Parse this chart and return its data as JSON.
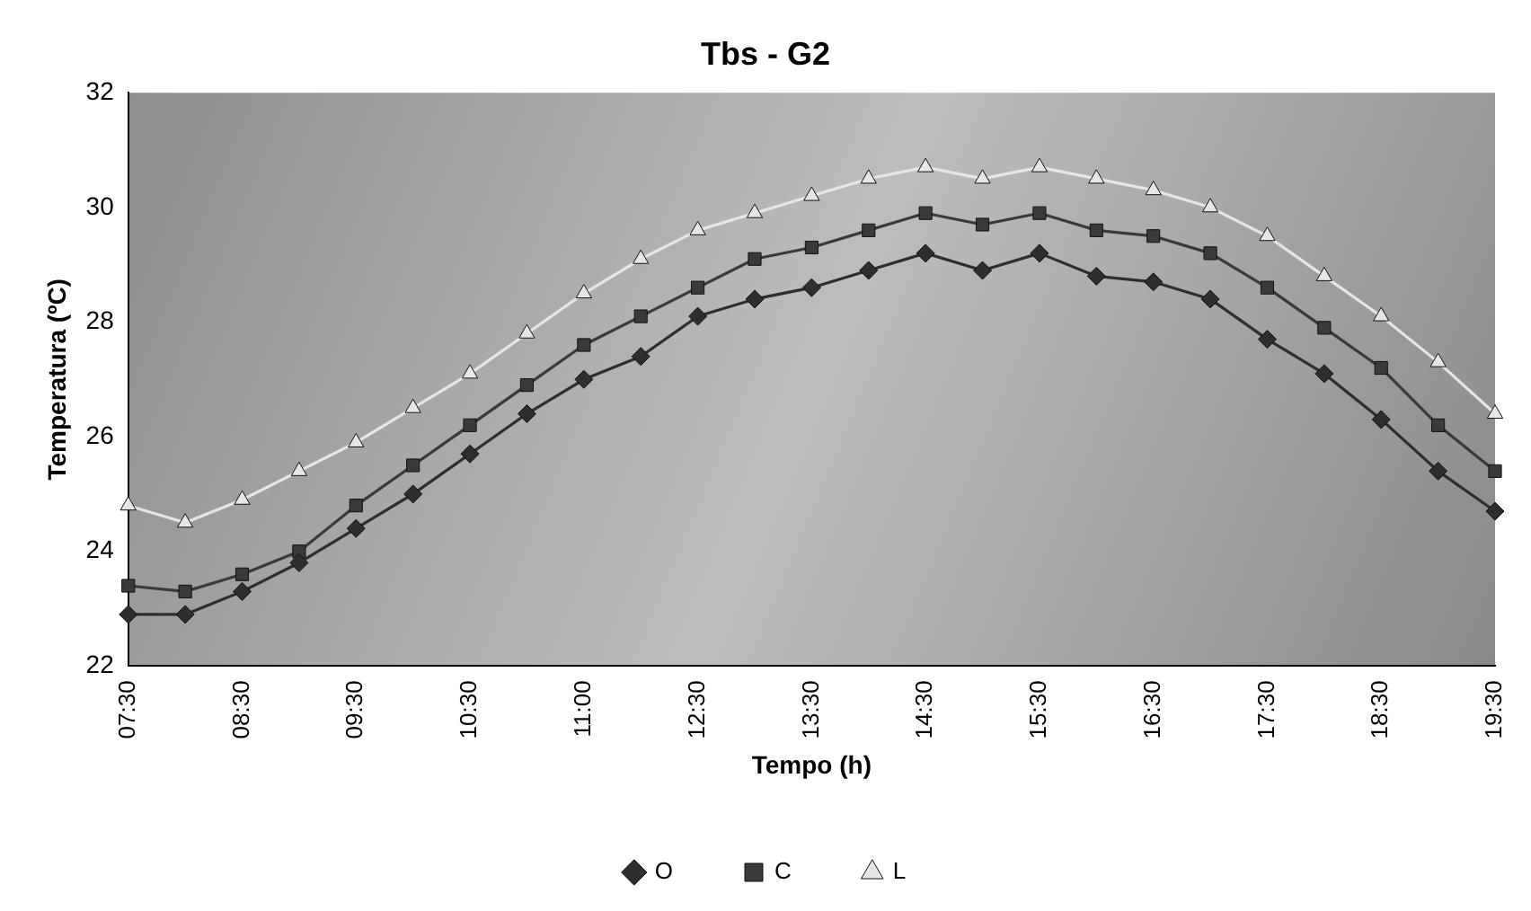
{
  "chart_data": {
    "type": "line",
    "title": "Tbs - G2",
    "xlabel": "Tempo (h)",
    "ylabel": "Temperatura (ºC)",
    "categories": [
      "07:30",
      null,
      "08:30",
      null,
      "09:30",
      null,
      "10:30",
      null,
      "11:00",
      null,
      "12:30",
      null,
      "13:30",
      null,
      "14:30",
      null,
      "15:30",
      null,
      "16:30",
      null,
      "17:30",
      null,
      "18:30",
      null,
      "19:30"
    ],
    "ylim": [
      22,
      32
    ],
    "yticks": [
      22,
      24,
      26,
      28,
      30,
      32
    ],
    "grid": false,
    "legend": "bottom",
    "line_style": "solid",
    "series": [
      {
        "name": "O",
        "color": "#2e2e2e",
        "marker": "diamond",
        "values": [
          22.9,
          22.9,
          23.3,
          23.8,
          24.4,
          25.0,
          25.7,
          26.4,
          27.0,
          27.4,
          28.1,
          28.4,
          28.6,
          28.9,
          29.2,
          28.9,
          29.2,
          28.8,
          28.7,
          28.4,
          27.7,
          27.1,
          26.3,
          25.4,
          24.7
        ]
      },
      {
        "name": "C",
        "color": "#3a3a3a",
        "marker": "square",
        "values": [
          23.4,
          23.3,
          23.6,
          24.0,
          24.8,
          25.5,
          26.2,
          26.9,
          27.6,
          28.1,
          28.6,
          29.1,
          29.3,
          29.6,
          29.9,
          29.7,
          29.9,
          29.6,
          29.5,
          29.2,
          28.6,
          27.9,
          27.2,
          26.2,
          25.4
        ]
      },
      {
        "name": "L",
        "color": "#e6e6e6",
        "marker": "triangle",
        "values": [
          24.8,
          24.5,
          24.9,
          25.4,
          25.9,
          26.5,
          27.1,
          27.8,
          28.5,
          29.1,
          29.6,
          29.9,
          30.2,
          30.5,
          30.7,
          30.5,
          30.7,
          30.5,
          30.3,
          30.0,
          29.5,
          28.8,
          28.1,
          27.3,
          26.4
        ]
      }
    ]
  }
}
